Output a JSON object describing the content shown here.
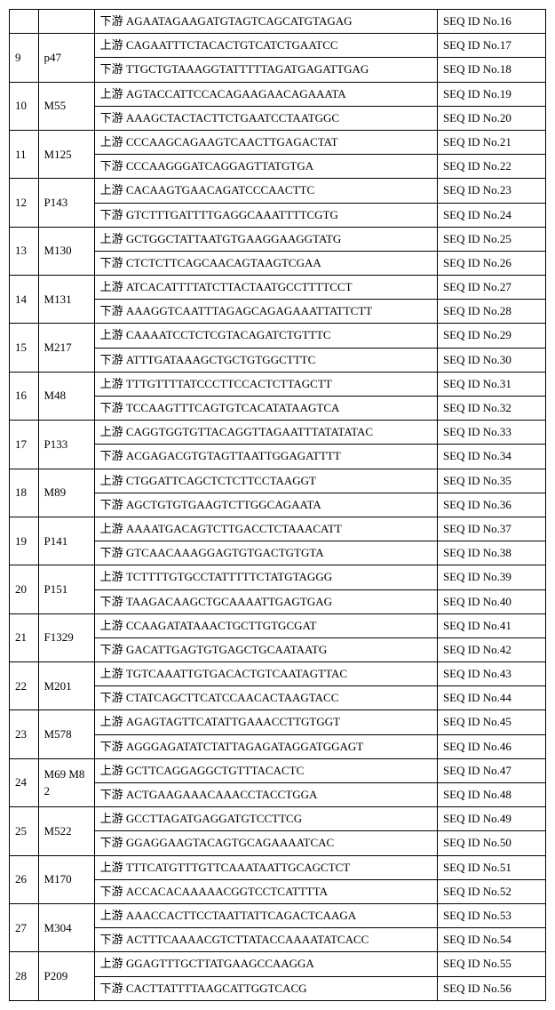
{
  "rows": [
    {
      "num": "",
      "gene": "",
      "seq": "下游 AGAATAGAAGATGTAGTCAGCATGTAGAG",
      "id": "SEQ ID No.16",
      "numSpan": 1,
      "geneSpan": 1
    },
    {
      "num": "9",
      "gene": "p47",
      "seq": "上游 CAGAATTTCTACACTGTCATCTGAATCC",
      "id": "SEQ ID No.17",
      "numSpan": 2,
      "geneSpan": 2
    },
    {
      "seq": "下游 TTGCTGTAAAGGTATTTTTAGATGAGATTGAG",
      "id": "SEQ ID No.18"
    },
    {
      "num": "10",
      "gene": "M55",
      "seq": "上游 AGTACCATTCCACAGAAGAACAGAAATA",
      "id": "SEQ ID No.19",
      "numSpan": 2,
      "geneSpan": 2
    },
    {
      "seq": "下游 AAAGCTACTACTTCTGAATCCTAATGGC",
      "id": "SEQ ID No.20"
    },
    {
      "num": "11",
      "gene": "M125",
      "seq": "上游 CCCAAGCAGAAGTCAACTTGAGACTAT",
      "id": "SEQ ID No.21",
      "numSpan": 2,
      "geneSpan": 2
    },
    {
      "seq": "下游 CCCAAGGGATCAGGAGTTATGTGA",
      "id": "SEQ ID No.22"
    },
    {
      "num": "12",
      "gene": "P143",
      "seq": "上游 CACAAGTGAACAGATCCCAACTTC",
      "id": "SEQ ID No.23",
      "numSpan": 2,
      "geneSpan": 2
    },
    {
      "seq": "下游 GTCTTTGATTTTGAGGCAAATTTTCGTG",
      "id": "SEQ ID No.24"
    },
    {
      "num": "13",
      "gene": "M130",
      "seq": "上游 GCTGGCTATTAATGTGAAGGAAGGTATG",
      "id": "SEQ ID No.25",
      "numSpan": 2,
      "geneSpan": 2
    },
    {
      "seq": "下游 CTCTCTTCAGCAACAGTAAGTCGAA",
      "id": "SEQ ID No.26"
    },
    {
      "num": "14",
      "gene": "M131",
      "seq": "上游 ATCACATTTTATCTTACTAATGCCTTTTCCT",
      "id": "SEQ ID No.27",
      "numSpan": 2,
      "geneSpan": 2
    },
    {
      "seq": "下游 AAAGGTCAATTTAGAGCAGAGAAATTATTCTT",
      "id": "SEQ ID No.28"
    },
    {
      "num": "15",
      "gene": "M217",
      "seq": "上游 CAAAATCCTCTCGTACAGATCTGTTTC",
      "id": "SEQ ID No.29",
      "numSpan": 2,
      "geneSpan": 2
    },
    {
      "seq": "下游 ATTTGATAAAGCTGCTGTGGCTTTC",
      "id": "SEQ ID No.30"
    },
    {
      "num": "16",
      "gene": "M48",
      "seq": "上游 TTTGTTTTATCCCTTCCACTCTTAGCTT",
      "id": "SEQ ID No.31",
      "numSpan": 2,
      "geneSpan": 2
    },
    {
      "seq": "下游 TCCAAGTTTCAGTGTCACATATAAGTCA",
      "id": "SEQ ID No.32"
    },
    {
      "num": "17",
      "gene": "P133",
      "seq": "上游 CAGGTGGTGTTACAGGTTAGAATTTATATATAC",
      "id": "SEQ ID No.33",
      "numSpan": 2,
      "geneSpan": 2
    },
    {
      "seq": "下游 ACGAGACGTGTAGTTAATTGGAGATTTT",
      "id": "SEQ ID No.34"
    },
    {
      "num": "18",
      "gene": "M89",
      "seq": "上游 CTGGATTCAGCTCTCTTCCTAAGGT",
      "id": "SEQ ID No.35",
      "numSpan": 2,
      "geneSpan": 2
    },
    {
      "seq": "下游 AGCTGTGTGAAGTCTTGGCAGAATA",
      "id": "SEQ ID No.36"
    },
    {
      "num": "19",
      "gene": "P141",
      "seq": "上游 AAAATGACAGTCTTGACCTCTAAACATT",
      "id": "SEQ ID No.37",
      "numSpan": 2,
      "geneSpan": 2
    },
    {
      "seq": "下游 GTCAACAAAGGAGTGTGACTGTGTA",
      "id": "SEQ ID No.38"
    },
    {
      "num": "20",
      "gene": "P151",
      "seq": "上游 TCTTTTGTGCCTATTTTTCTATGTAGGG",
      "id": "SEQ ID No.39",
      "numSpan": 2,
      "geneSpan": 2
    },
    {
      "seq": "下游 TAAGACAAGCTGCAAAATTGAGTGAG",
      "id": "SEQ ID No.40"
    },
    {
      "num": "21",
      "gene": "F1329",
      "seq": "上游 CCAAGATATAAACTGCTTGTGCGAT",
      "id": "SEQ ID No.41",
      "numSpan": 2,
      "geneSpan": 2
    },
    {
      "seq": "下游 GACATTGAGTGTGAGCTGCAATAATG",
      "id": "SEQ ID No.42"
    },
    {
      "num": "22",
      "gene": "M201",
      "seq": "上游 TGTCAAATTGTGACACTGTCAATAGTTAC",
      "id": "SEQ ID No.43",
      "numSpan": 2,
      "geneSpan": 2
    },
    {
      "seq": "下游 CTATCAGCTTCATCCAACACTAAGTACC",
      "id": "SEQ ID No.44"
    },
    {
      "num": "23",
      "gene": "M578",
      "seq": "上游 AGAGTAGTTCATATTGAAACCTTGTGGT",
      "id": "SEQ ID No.45",
      "numSpan": 2,
      "geneSpan": 2
    },
    {
      "seq": "下游 AGGGAGATATCTATTAGAGATAGGATGGAGT",
      "id": "SEQ ID No.46"
    },
    {
      "num": "24",
      "gene": "M69 M82",
      "seq": "上游 GCTTCAGGAGGCTGTTTACACTC",
      "id": "SEQ ID No.47",
      "numSpan": 2,
      "geneSpan": 2
    },
    {
      "seq": "下游 ACTGAAGAAACAAACCTACCTGGA",
      "id": "SEQ ID No.48"
    },
    {
      "num": "25",
      "gene": "M522",
      "seq": "上游 GCCTTAGATGAGGATGTCCTTCG",
      "id": "SEQ ID No.49",
      "numSpan": 2,
      "geneSpan": 2
    },
    {
      "seq": "下游 GGAGGAAGTACAGTGCAGAAAATCAC",
      "id": "SEQ ID No.50"
    },
    {
      "num": "26",
      "gene": "M170",
      "seq": "上游 TTTCATGTTTGTTCAAATAATTGCAGCTCT",
      "id": "SEQ ID No.51",
      "numSpan": 2,
      "geneSpan": 2
    },
    {
      "seq": "下游 ACCACACAAAAACGGTCCTCATTTTA",
      "id": "SEQ ID No.52"
    },
    {
      "num": "27",
      "gene": "M304",
      "seq": "上游 AAACCACTTCCTAATTATTCAGACTCAAGA",
      "id": "SEQ ID No.53",
      "numSpan": 2,
      "geneSpan": 2
    },
    {
      "seq": "下游 ACTTTCAAAACGTCTTATACCAAAATATCACC",
      "id": "SEQ ID No.54"
    },
    {
      "num": "28",
      "gene": "P209",
      "seq": "上游 GGAGTTTGCTTATGAAGCCAAGGA",
      "id": "SEQ ID No.55",
      "numSpan": 2,
      "geneSpan": 2
    },
    {
      "seq": "下游 CACTTATTTTAAGCATTGGTCACG",
      "id": "SEQ ID No.56"
    }
  ]
}
